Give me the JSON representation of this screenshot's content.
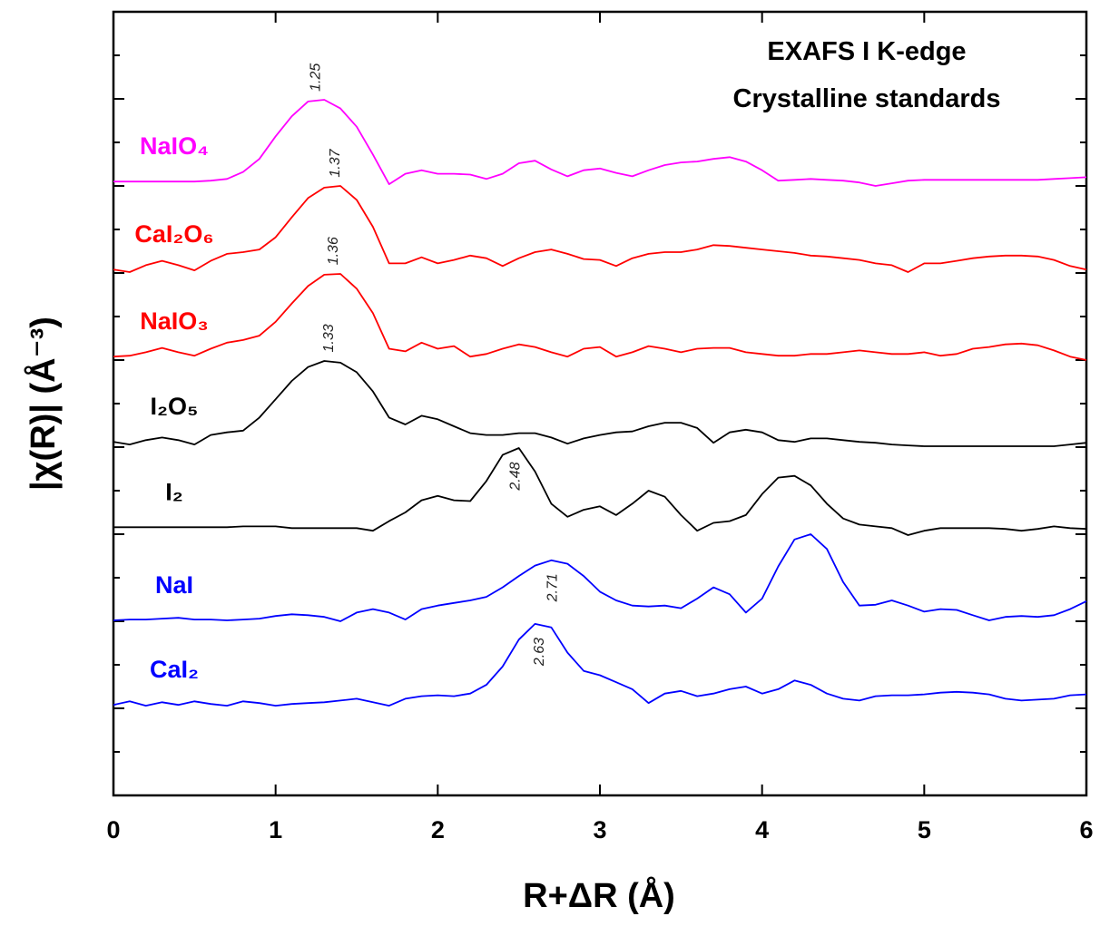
{
  "chart_data": {
    "type": "line",
    "title": "EXAFS I K-edge",
    "subtitle": "Crystalline standards",
    "x_label": "R+ΔR (Å)",
    "y_label": "|χ(R)| (Å⁻³)",
    "xlim": [
      0,
      6
    ],
    "xticks": [
      0,
      1,
      2,
      3,
      4,
      5,
      6
    ],
    "ylim": [
      0,
      9
    ],
    "yticks": [
      0.5,
      1,
      1.5,
      2,
      2.5,
      3,
      3.5,
      4,
      4.5,
      5,
      5.5,
      6,
      6.5,
      7,
      7.5,
      8,
      8.5
    ],
    "x": [
      0,
      0.1,
      0.2,
      0.3,
      0.4,
      0.5,
      0.6,
      0.7,
      0.8,
      0.9,
      1,
      1.1,
      1.2,
      1.3,
      1.4,
      1.5,
      1.6,
      1.7,
      1.8,
      1.9,
      2,
      2.1,
      2.2,
      2.3,
      2.4,
      2.5,
      2.6,
      2.7,
      2.8,
      2.9,
      3,
      3.1,
      3.2,
      3.3,
      3.4,
      3.5,
      3.6,
      3.7,
      3.8,
      3.9,
      4,
      4.1,
      4.2,
      4.3,
      4.4,
      4.5,
      4.6,
      4.7,
      4.8,
      4.9,
      5,
      5.1,
      5.2,
      5.3,
      5.4,
      5.5,
      5.6,
      5.7,
      5.8,
      5.9,
      6
    ],
    "series": [
      {
        "name": "NaIO₄",
        "color": "#ff00ff",
        "peak": 1.25,
        "values": [
          7.05,
          7.05,
          7.05,
          7.05,
          7.05,
          7.05,
          7.06,
          7.08,
          7.16,
          7.31,
          7.57,
          7.8,
          7.97,
          7.99,
          7.89,
          7.68,
          7.36,
          7.02,
          7.14,
          7.18,
          7.14,
          7.14,
          7.13,
          7.08,
          7.14,
          7.26,
          7.29,
          7.19,
          7.11,
          7.18,
          7.2,
          7.15,
          7.11,
          7.18,
          7.24,
          7.27,
          7.28,
          7.31,
          7.33,
          7.28,
          7.18,
          7.06,
          7.07,
          7.08,
          7.07,
          7.06,
          7.04,
          7.0,
          7.03,
          7.06,
          7.07,
          7.07,
          7.07,
          7.07,
          7.07,
          7.07,
          7.07,
          7.07,
          7.08,
          7.09,
          7.1
        ]
      },
      {
        "name": "CaI₂O₆",
        "color": "#ff0000",
        "peak": 1.37,
        "values": [
          6.04,
          6.01,
          6.09,
          6.14,
          6.09,
          6.03,
          6.14,
          6.22,
          6.24,
          6.27,
          6.41,
          6.64,
          6.86,
          6.98,
          7.0,
          6.84,
          6.53,
          6.11,
          6.11,
          6.18,
          6.11,
          6.15,
          6.2,
          6.17,
          6.08,
          6.17,
          6.24,
          6.27,
          6.22,
          6.16,
          6.15,
          6.08,
          6.17,
          6.22,
          6.24,
          6.24,
          6.27,
          6.32,
          6.31,
          6.29,
          6.27,
          6.25,
          6.23,
          6.2,
          6.19,
          6.17,
          6.15,
          6.11,
          6.09,
          6.01,
          6.11,
          6.11,
          6.14,
          6.17,
          6.19,
          6.2,
          6.2,
          6.19,
          6.15,
          6.08,
          6.04
        ]
      },
      {
        "name": "NaIO₃",
        "color": "#ff0000",
        "peak": 1.36,
        "values": [
          5.04,
          5.05,
          5.09,
          5.14,
          5.09,
          5.05,
          5.13,
          5.2,
          5.23,
          5.28,
          5.44,
          5.65,
          5.85,
          5.98,
          5.99,
          5.82,
          5.54,
          5.13,
          5.1,
          5.2,
          5.13,
          5.16,
          5.04,
          5.07,
          5.13,
          5.18,
          5.15,
          5.09,
          5.04,
          5.13,
          5.15,
          5.04,
          5.09,
          5.16,
          5.13,
          5.09,
          5.13,
          5.14,
          5.14,
          5.09,
          5.07,
          5.05,
          5.05,
          5.07,
          5.07,
          5.09,
          5.11,
          5.09,
          5.07,
          5.07,
          5.09,
          5.05,
          5.07,
          5.13,
          5.15,
          5.18,
          5.19,
          5.17,
          5.11,
          5.04,
          5.0
        ]
      },
      {
        "name": "I₂O₅",
        "color": "#000000",
        "peak": 1.33,
        "values": [
          4.06,
          4.03,
          4.08,
          4.11,
          4.08,
          4.03,
          4.14,
          4.17,
          4.19,
          4.34,
          4.55,
          4.76,
          4.92,
          4.99,
          4.97,
          4.86,
          4.64,
          4.34,
          4.26,
          4.36,
          4.32,
          4.24,
          4.16,
          4.14,
          4.14,
          4.16,
          4.16,
          4.11,
          4.04,
          4.1,
          4.14,
          4.17,
          4.18,
          4.24,
          4.28,
          4.28,
          4.22,
          4.05,
          4.17,
          4.2,
          4.17,
          4.08,
          4.06,
          4.1,
          4.1,
          4.08,
          4.06,
          4.05,
          4.03,
          4.02,
          4.01,
          4.01,
          4.01,
          4.01,
          4.01,
          4.01,
          4.01,
          4.01,
          4.01,
          4.03,
          4.05
        ]
      },
      {
        "name": "I₂",
        "color": "#000000",
        "peak": 2.48,
        "values": [
          3.08,
          3.08,
          3.08,
          3.08,
          3.08,
          3.08,
          3.08,
          3.08,
          3.09,
          3.09,
          3.09,
          3.07,
          3.07,
          3.07,
          3.07,
          3.07,
          3.04,
          3.15,
          3.25,
          3.39,
          3.44,
          3.39,
          3.38,
          3.61,
          3.91,
          3.99,
          3.72,
          3.35,
          3.2,
          3.28,
          3.32,
          3.22,
          3.35,
          3.5,
          3.43,
          3.22,
          3.04,
          3.13,
          3.15,
          3.22,
          3.46,
          3.65,
          3.67,
          3.56,
          3.35,
          3.18,
          3.11,
          3.09,
          3.07,
          2.99,
          3.04,
          3.07,
          3.07,
          3.07,
          3.07,
          3.06,
          3.04,
          3.06,
          3.09,
          3.07,
          3.06
        ]
      },
      {
        "name": "NaI",
        "color": "#0000ff",
        "peak": 2.71,
        "values": [
          2.01,
          2.02,
          2.02,
          2.03,
          2.04,
          2.02,
          2.02,
          2.01,
          2.02,
          2.03,
          2.06,
          2.08,
          2.07,
          2.05,
          2.0,
          2.1,
          2.14,
          2.1,
          2.02,
          2.14,
          2.18,
          2.21,
          2.24,
          2.28,
          2.39,
          2.52,
          2.64,
          2.7,
          2.66,
          2.52,
          2.34,
          2.24,
          2.18,
          2.17,
          2.18,
          2.15,
          2.26,
          2.39,
          2.31,
          2.1,
          2.26,
          2.63,
          2.94,
          3.0,
          2.83,
          2.45,
          2.18,
          2.19,
          2.24,
          2.18,
          2.11,
          2.14,
          2.13,
          2.07,
          2.01,
          2.05,
          2.06,
          2.05,
          2.07,
          2.14,
          2.23
        ]
      },
      {
        "name": "CaI₂",
        "color": "#0000ff",
        "peak": 2.63,
        "values": [
          1.04,
          1.08,
          1.03,
          1.07,
          1.04,
          1.08,
          1.05,
          1.03,
          1.08,
          1.06,
          1.03,
          1.05,
          1.06,
          1.07,
          1.09,
          1.11,
          1.07,
          1.03,
          1.11,
          1.14,
          1.15,
          1.14,
          1.17,
          1.27,
          1.48,
          1.79,
          1.97,
          1.93,
          1.64,
          1.43,
          1.38,
          1.3,
          1.22,
          1.06,
          1.17,
          1.2,
          1.14,
          1.17,
          1.22,
          1.25,
          1.17,
          1.22,
          1.32,
          1.27,
          1.17,
          1.11,
          1.09,
          1.14,
          1.15,
          1.15,
          1.16,
          1.18,
          1.19,
          1.18,
          1.16,
          1.11,
          1.09,
          1.1,
          1.11,
          1.15,
          1.16
        ]
      }
    ]
  }
}
